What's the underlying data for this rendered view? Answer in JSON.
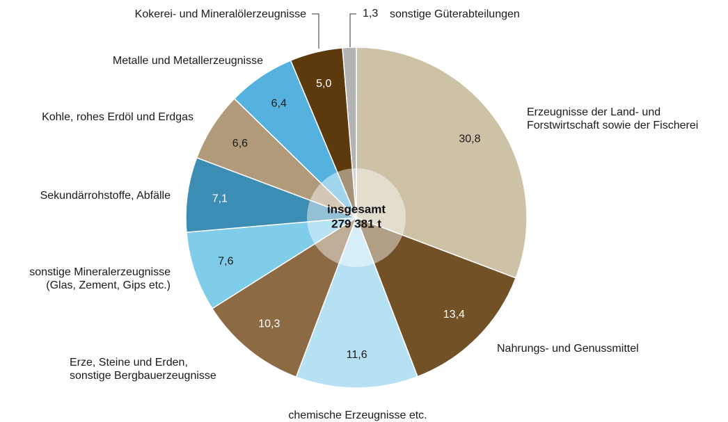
{
  "chart_data": {
    "type": "pie",
    "total_label": "insgesamt",
    "total_value": "279 381 t",
    "categories": [
      "Erzeugnisse der Land- und\nForstwirtschaft sowie der Fischerei",
      "Nahrungs- und Genussmittel",
      "chemische Erzeugnisse etc.",
      "Erze, Steine und Erden,\nsonstige Bergbauerzeugnisse",
      "sonstige Mineralerzeugnisse\n(Glas, Zement, Gips etc.)",
      "Sekundärrohstoffe, Abfälle",
      "Kohle, rohes Erdöl und Erdgas",
      "Metalle und Metallerzeugnisse",
      "Kokerei- und Mineralölerzeugnisse",
      "sonstige Güterabteilungen"
    ],
    "values": [
      30.8,
      13.4,
      11.6,
      10.3,
      7.6,
      7.1,
      6.6,
      6.4,
      5.0,
      1.3
    ],
    "value_labels": [
      "30,8",
      "13,4",
      "11,6",
      "10,3",
      "7,6",
      "7,1",
      "6,6",
      "6,4",
      "5,0",
      "1,3"
    ],
    "colors": [
      "#cdc1a6",
      "#735127",
      "#b5e1f3",
      "#8c6a44",
      "#7fcde9",
      "#3b8db3",
      "#b09a7a",
      "#55b2de",
      "#5c3a0e",
      "#b3b3b3"
    ]
  }
}
